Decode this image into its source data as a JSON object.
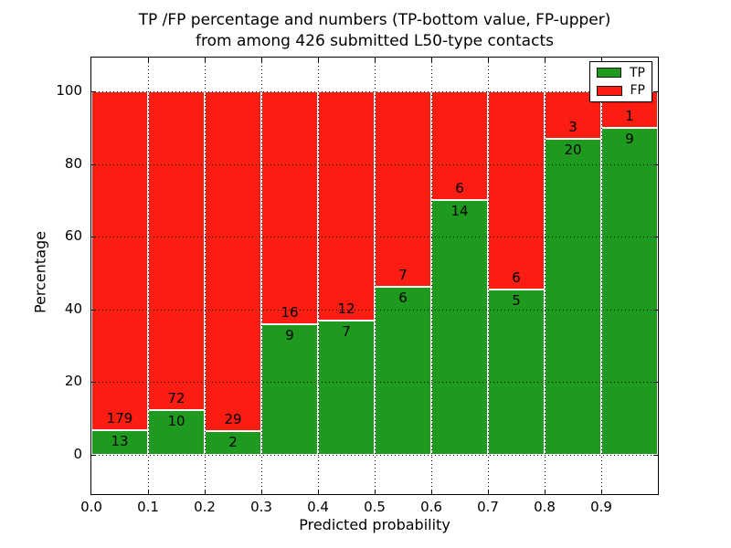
{
  "title": {
    "line1": "TP /FP percentage and numbers (TP-bottom value, FP-upper)",
    "line2": "from among 426 submitted L50-type contacts"
  },
  "axes": {
    "xlabel": "Predicted probability",
    "ylabel": "Percentage"
  },
  "legend": {
    "items": [
      {
        "label": "TP",
        "color": "#1e9b1e"
      },
      {
        "label": "FP",
        "color": "#fb1d12"
      }
    ]
  },
  "chart_data": {
    "type": "bar",
    "stacked": true,
    "normalized_to_percent": 100,
    "title": "TP /FP percentage and numbers (TP-bottom value, FP-upper) from among 426 submitted L50-type contacts",
    "xlabel": "Predicted probability",
    "ylabel": "Percentage",
    "total_contacts": 426,
    "bin_width": 0.1,
    "bin_starts": [
      0.0,
      0.1,
      0.2,
      0.3,
      0.4,
      0.5,
      0.6,
      0.7,
      0.8,
      0.9
    ],
    "xtick_labels": [
      "0.0",
      "0.1",
      "0.2",
      "0.3",
      "0.4",
      "0.5",
      "0.6",
      "0.7",
      "0.8",
      "0.9"
    ],
    "ytick_values": [
      0,
      20,
      40,
      60,
      80,
      100
    ],
    "ylim": [
      -10.8,
      109.3
    ],
    "xlim": [
      0.0,
      1.0
    ],
    "grid": "dotted black, both axes, on top of bars",
    "legend_position": "upper right",
    "bar_edge_color": "#ffffff",
    "series": [
      {
        "name": "TP",
        "color": "#1e9b1e",
        "counts": [
          13,
          10,
          2,
          9,
          7,
          6,
          14,
          5,
          20,
          9
        ]
      },
      {
        "name": "FP",
        "color": "#fb1d12",
        "counts": [
          179,
          72,
          29,
          16,
          12,
          7,
          6,
          6,
          3,
          1
        ]
      }
    ],
    "tp_percent_depicted": [
      6.8,
      12.2,
      6.5,
      36.0,
      36.8,
      46.2,
      70.0,
      45.5,
      87.0,
      90.0
    ]
  }
}
